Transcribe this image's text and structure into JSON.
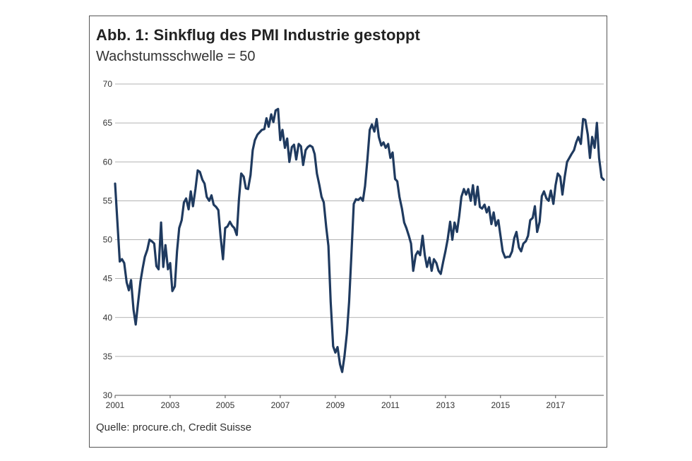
{
  "chart_data": {
    "type": "line",
    "title": "Abb. 1: Sinkflug des PMI Industrie gestoppt",
    "subtitle": "Wachstumsschwelle = 50",
    "source": "Quelle: procure.ch, Credit Suisse",
    "xlabel": "",
    "ylabel": "",
    "ylim": [
      30,
      70
    ],
    "xlim": [
      2001,
      2018.75
    ],
    "yticks": [
      30,
      35,
      40,
      45,
      50,
      55,
      60,
      65,
      70
    ],
    "xticks": [
      "2001",
      "2003",
      "2005",
      "2007",
      "2009",
      "2011",
      "2013",
      "2015",
      "2017"
    ],
    "grid": "horizontal",
    "legend": "none",
    "line_color": "#1f3a5f",
    "series": [
      {
        "x": [
          2001.0,
          2001.08,
          2001.17,
          2001.25,
          2001.33,
          2001.42,
          2001.5,
          2001.58,
          2001.67,
          2001.75,
          2001.83,
          2001.92,
          2002.0,
          2002.08,
          2002.17,
          2002.25,
          2002.33,
          2002.42,
          2002.5,
          2002.58,
          2002.67,
          2002.75,
          2002.83,
          2002.92,
          2003.0,
          2003.08,
          2003.17,
          2003.25,
          2003.33,
          2003.42,
          2003.5,
          2003.58,
          2003.67,
          2003.75,
          2003.83,
          2003.92,
          2004.0,
          2004.08,
          2004.17,
          2004.25,
          2004.33,
          2004.42,
          2004.5,
          2004.58,
          2004.67,
          2004.75,
          2004.83,
          2004.92,
          2005.0,
          2005.08,
          2005.17,
          2005.25,
          2005.33,
          2005.42,
          2005.5,
          2005.58,
          2005.67,
          2005.75,
          2005.83,
          2005.92,
          2006.0,
          2006.08,
          2006.17,
          2006.25,
          2006.33,
          2006.42,
          2006.5,
          2006.58,
          2006.67,
          2006.75,
          2006.83,
          2006.92,
          2007.0,
          2007.08,
          2007.17,
          2007.25,
          2007.33,
          2007.42,
          2007.5,
          2007.58,
          2007.67,
          2007.75,
          2007.83,
          2007.92,
          2008.0,
          2008.08,
          2008.17,
          2008.25,
          2008.33,
          2008.42,
          2008.5,
          2008.58,
          2008.67,
          2008.75,
          2008.83,
          2008.92,
          2009.0,
          2009.08,
          2009.17,
          2009.25,
          2009.33,
          2009.42,
          2009.5,
          2009.58,
          2009.67,
          2009.75,
          2009.83,
          2009.92,
          2010.0,
          2010.08,
          2010.17,
          2010.25,
          2010.33,
          2010.42,
          2010.5,
          2010.58,
          2010.67,
          2010.75,
          2010.83,
          2010.92,
          2011.0,
          2011.08,
          2011.17,
          2011.25,
          2011.33,
          2011.42,
          2011.5,
          2011.58,
          2011.67,
          2011.75,
          2011.83,
          2011.92,
          2012.0,
          2012.08,
          2012.17,
          2012.25,
          2012.33,
          2012.42,
          2012.5,
          2012.58,
          2012.67,
          2012.75,
          2012.83,
          2012.92,
          2013.0,
          2013.08,
          2013.17,
          2013.25,
          2013.33,
          2013.42,
          2013.5,
          2013.58,
          2013.67,
          2013.75,
          2013.83,
          2013.92,
          2014.0,
          2014.08,
          2014.17,
          2014.25,
          2014.33,
          2014.42,
          2014.5,
          2014.58,
          2014.67,
          2014.75,
          2014.83,
          2014.92,
          2015.0,
          2015.08,
          2015.17,
          2015.25,
          2015.33,
          2015.42,
          2015.5,
          2015.58,
          2015.67,
          2015.75,
          2015.83,
          2015.92,
          2016.0,
          2016.08,
          2016.17,
          2016.25,
          2016.33,
          2016.42,
          2016.5,
          2016.58,
          2016.67,
          2016.75,
          2016.83,
          2016.92,
          2017.0,
          2017.08,
          2017.17,
          2017.25,
          2017.33,
          2017.42,
          2017.5,
          2017.58,
          2017.67,
          2017.75,
          2017.83,
          2017.92,
          2018.0,
          2018.08,
          2018.17,
          2018.25,
          2018.33,
          2018.42,
          2018.5,
          2018.58,
          2018.67,
          2018.75
        ],
        "y": [
          57.2,
          52.5,
          47.2,
          47.5,
          47.0,
          44.5,
          43.5,
          44.8,
          41.0,
          39.1,
          41.8,
          44.6,
          46.3,
          47.8,
          48.7,
          50.0,
          49.8,
          49.5,
          46.6,
          46.2,
          52.2,
          46.5,
          49.3,
          46.2,
          47.0,
          43.4,
          44.0,
          48.5,
          51.5,
          52.5,
          54.8,
          55.3,
          53.9,
          56.2,
          54.3,
          56.5,
          58.9,
          58.7,
          57.7,
          57.2,
          55.5,
          55.0,
          55.7,
          54.5,
          54.2,
          53.8,
          50.5,
          47.5,
          51.5,
          51.7,
          52.3,
          51.8,
          51.5,
          50.6,
          55.2,
          58.5,
          58.1,
          56.6,
          56.5,
          58.3,
          61.5,
          62.8,
          63.5,
          63.8,
          64.1,
          64.2,
          65.6,
          64.5,
          66.1,
          65.1,
          66.6,
          66.8,
          62.8,
          64.1,
          61.8,
          63.0,
          60.0,
          61.9,
          62.2,
          60.3,
          62.3,
          62.0,
          59.6,
          61.5,
          61.9,
          62.1,
          61.9,
          61.0,
          58.5,
          57.0,
          55.5,
          54.8,
          51.6,
          49.2,
          42.0,
          36.3,
          35.5,
          36.2,
          34.0,
          33.0,
          35.0,
          38.0,
          42.0,
          47.8,
          54.6,
          55.2,
          55.1,
          55.4,
          55.0,
          56.9,
          60.5,
          64.1,
          64.8,
          63.9,
          65.5,
          63.2,
          62.1,
          62.5,
          61.8,
          62.3,
          60.5,
          61.2,
          57.8,
          57.5,
          55.5,
          54.0,
          52.2,
          51.5,
          50.5,
          49.5,
          46.0,
          48.0,
          48.5,
          48.0,
          50.5,
          48.0,
          46.5,
          47.7,
          46.0,
          47.5,
          47.0,
          46.0,
          45.6,
          47.2,
          48.5,
          50.0,
          52.3,
          50.0,
          52.2,
          51.0,
          53.0,
          55.5,
          56.5,
          55.8,
          56.5,
          55.0,
          57.0,
          54.5,
          56.8,
          54.2,
          54.0,
          54.5,
          53.5,
          54.2,
          52.0,
          53.5,
          51.8,
          52.5,
          50.5,
          48.5,
          47.7,
          47.8,
          47.8,
          48.5,
          50.2,
          51.0,
          49.0,
          48.5,
          49.5,
          49.8,
          50.5,
          52.5,
          52.8,
          54.3,
          51.0,
          52.3,
          55.6,
          56.2,
          55.3,
          55.0,
          56.3,
          54.6,
          57.0,
          58.5,
          58.1,
          55.8,
          58.0,
          60.0,
          60.5,
          61.0,
          61.5,
          62.5,
          63.2,
          62.3,
          65.5,
          65.4,
          63.5,
          60.5,
          63.2,
          61.8,
          65.0,
          60.5,
          58.0,
          57.7
        ]
      }
    ]
  }
}
